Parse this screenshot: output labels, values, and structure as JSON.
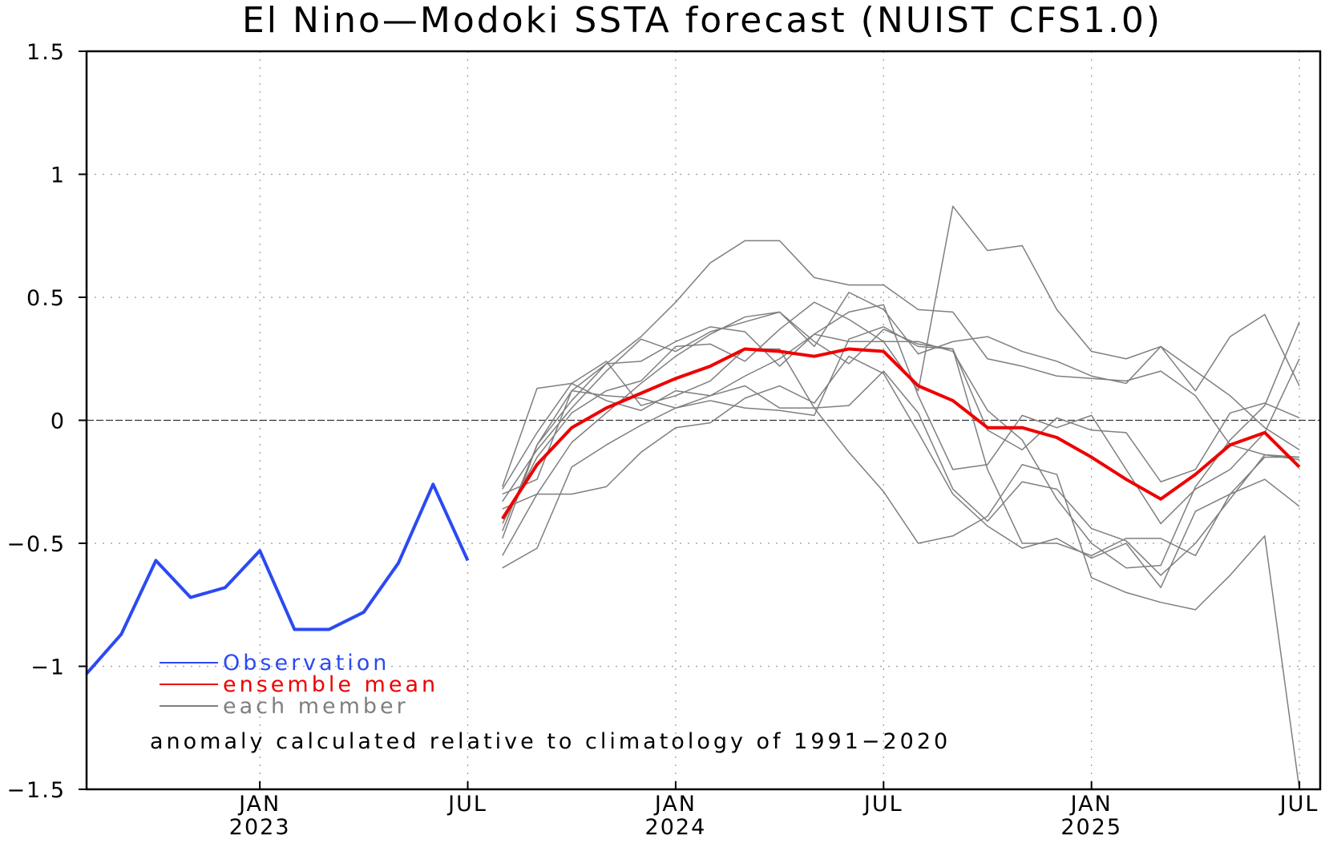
{
  "chart_data": {
    "type": "line",
    "title": "El Nino—Modoki SSTA forecast (NUIST CFS1.0)",
    "ylim": [
      -1.5,
      1.5
    ],
    "yticks": [
      1.5,
      1,
      0.5,
      0,
      -0.5,
      -1,
      -1.5
    ],
    "ytick_labels": [
      "1.5",
      "1",
      "0.5",
      "0",
      "−0.5",
      "−1",
      "−1.5"
    ],
    "xlim": [
      0,
      35.6
    ],
    "xticks": [
      {
        "x": 5,
        "month": "JAN",
        "year": "2023"
      },
      {
        "x": 11,
        "month": "JUL",
        "year": ""
      },
      {
        "x": 17,
        "month": "JAN",
        "year": "2024"
      },
      {
        "x": 23,
        "month": "JUL",
        "year": ""
      },
      {
        "x": 29,
        "month": "JAN",
        "year": "2025"
      },
      {
        "x": 35,
        "month": "JUL",
        "year": ""
      }
    ],
    "grid": true,
    "zero_line": true,
    "note": "anomaly calculated relative to climatology of 1991−2020",
    "legend": {
      "placement": "lower-left",
      "entries": [
        {
          "label": "Observation",
          "color": "#2b4af2"
        },
        {
          "label": "ensemble mean",
          "color": "#ee0000"
        },
        {
          "label": "each member",
          "color": "#7f7f7f"
        }
      ]
    },
    "x_first_month": "2022-08",
    "series": [
      {
        "name": "Observation",
        "color": "#2b4af2",
        "x": [
          0,
          1,
          2,
          3,
          4,
          5,
          6,
          7,
          8,
          9,
          10,
          11
        ],
        "y": [
          -1.03,
          -0.87,
          -0.57,
          -0.72,
          -0.68,
          -0.53,
          -0.85,
          -0.85,
          -0.78,
          -0.58,
          -0.26,
          -0.57
        ]
      },
      {
        "name": "ensemble mean",
        "color": "#ee0000",
        "x": [
          12,
          13,
          14,
          15,
          16,
          17,
          18,
          19,
          20,
          21,
          22,
          23,
          24,
          25,
          26,
          27,
          28,
          29,
          30,
          31,
          32,
          33,
          34,
          35
        ],
        "y": [
          -0.4,
          -0.18,
          -0.03,
          0.05,
          0.11,
          0.17,
          0.22,
          0.29,
          0.28,
          0.26,
          0.29,
          0.28,
          0.14,
          0.08,
          -0.03,
          -0.03,
          -0.07,
          -0.15,
          -0.24,
          -0.32,
          -0.22,
          -0.1,
          -0.05,
          -0.19
        ]
      }
    ],
    "members": {
      "color": "#7f7f7f",
      "x_start": 12,
      "values": [
        [
          -0.27,
          0.13,
          0.15,
          0.08,
          0.04,
          0.12,
          0.1,
          0.18,
          0.25,
          0.35,
          0.44,
          0.47,
          0.1,
          -0.2,
          -0.18,
          0.02,
          -0.03,
          0.02,
          -0.2,
          -0.42,
          -0.28,
          -0.2,
          -0.05,
          0.25
        ],
        [
          -0.33,
          -0.12,
          0.05,
          0.2,
          0.33,
          0.28,
          0.36,
          0.4,
          0.44,
          0.32,
          0.23,
          0.37,
          0.31,
          0.29,
          -0.04,
          -0.12,
          0.01,
          -0.04,
          -0.05,
          -0.25,
          -0.2,
          0.03,
          0.07,
          0.01
        ],
        [
          -0.45,
          -0.1,
          0.08,
          0.23,
          0.34,
          0.48,
          0.64,
          0.73,
          0.73,
          0.58,
          0.55,
          0.55,
          0.45,
          0.44,
          0.25,
          0.22,
          0.18,
          0.17,
          0.16,
          0.2,
          0.1,
          -0.1,
          -0.14,
          -0.16
        ],
        [
          -0.55,
          -0.3,
          -0.09,
          0.03,
          0.15,
          0.26,
          0.35,
          0.42,
          0.44,
          0.3,
          0.52,
          0.45,
          0.27,
          0.32,
          0.34,
          0.28,
          0.24,
          0.18,
          0.15,
          0.3,
          0.12,
          0.34,
          0.43,
          0.14
        ],
        [
          -0.3,
          -0.24,
          0.12,
          0.23,
          0.24,
          0.32,
          0.38,
          0.36,
          0.22,
          0.35,
          0.32,
          0.32,
          0.32,
          0.28,
          0.04,
          -0.08,
          -0.32,
          -0.5,
          -0.6,
          -0.59,
          -0.27,
          -0.08,
          0.06,
          0.4
        ],
        [
          -0.48,
          -0.1,
          0.12,
          0.1,
          0.09,
          0.05,
          0.08,
          0.05,
          0.04,
          0.02,
          0.33,
          0.38,
          0.3,
          0.29,
          -0.2,
          -0.5,
          -0.5,
          -0.55,
          -0.48,
          -0.48,
          -0.55,
          -0.3,
          -0.24,
          -0.35
        ],
        [
          -0.6,
          -0.52,
          -0.19,
          -0.1,
          -0.02,
          0.05,
          0.1,
          0.14,
          0.05,
          0.05,
          -0.13,
          -0.29,
          -0.5,
          -0.47,
          -0.39,
          -0.18,
          -0.22,
          -0.64,
          -0.7,
          -0.74,
          -0.77,
          -0.63,
          -0.47,
          -1.5
        ],
        [
          -0.36,
          -0.3,
          -0.3,
          -0.27,
          -0.13,
          -0.03,
          -0.01,
          0.09,
          0.14,
          0.07,
          0.26,
          0.19,
          -0.05,
          -0.3,
          -0.43,
          -0.52,
          -0.48,
          -0.56,
          -0.5,
          -0.68,
          -0.37,
          -0.3,
          -0.15,
          -0.15
        ],
        [
          -0.28,
          -0.05,
          0.15,
          0.24,
          0.06,
          0.1,
          0.16,
          0.29,
          0.29,
          0.05,
          0.06,
          0.2,
          0.03,
          -0.28,
          -0.41,
          -0.25,
          -0.28,
          -0.44,
          -0.49,
          -0.63,
          -0.5,
          -0.32,
          -0.14,
          -0.15
        ],
        [
          -0.42,
          -0.15,
          0.03,
          0.12,
          0.16,
          0.3,
          0.31,
          0.24,
          0.37,
          0.48,
          0.41,
          0.32,
          0.12,
          0.87,
          0.69,
          0.71,
          0.45,
          0.28,
          0.25,
          0.3,
          0.2,
          0.1,
          -0.03,
          -0.12
        ]
      ]
    }
  }
}
